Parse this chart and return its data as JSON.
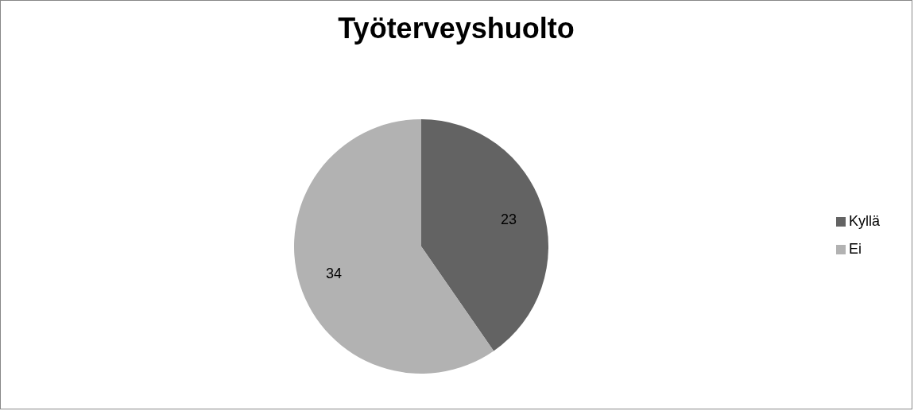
{
  "chart_data": {
    "type": "pie",
    "title": "Työterveyshuolto",
    "categories": [
      "Kyllä",
      "Ei"
    ],
    "values": [
      23,
      34
    ],
    "colors": [
      "#636363",
      "#b2b2b2"
    ],
    "data_labels": true,
    "legend": "right"
  }
}
